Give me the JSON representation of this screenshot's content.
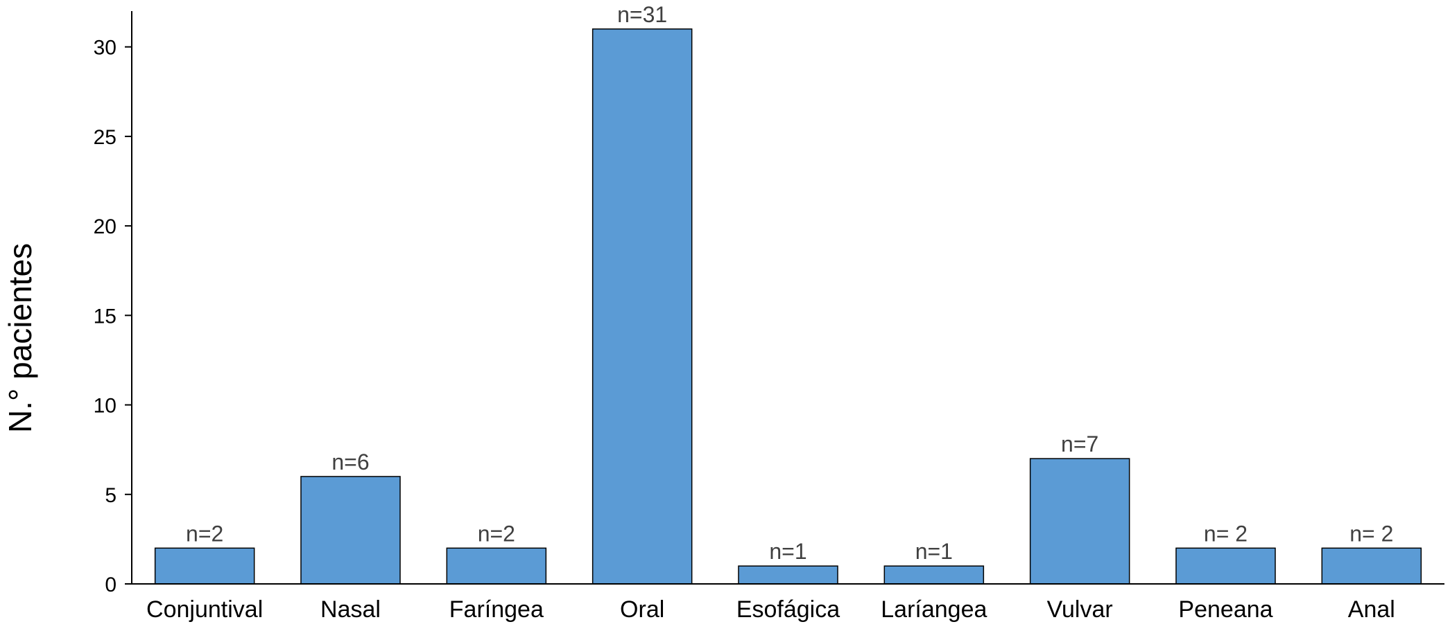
{
  "chart_data": {
    "type": "bar",
    "categories": [
      "Conjuntival",
      "Nasal",
      "Faríngea",
      "Oral",
      "Esofágica",
      "Laríangea",
      "Vulvar",
      "Peneana",
      "Anal"
    ],
    "values": [
      2,
      6,
      2,
      31,
      1,
      1,
      7,
      2,
      2
    ],
    "data_labels": [
      "n=2",
      "n=6",
      "n=2",
      "n=31",
      "n=1",
      "n=1",
      "n=7",
      "n= 2",
      "n= 2"
    ],
    "ylabel": "N.° pacientes",
    "xlabel": "",
    "ylim": [
      0,
      32
    ],
    "yticks": [
      0,
      5,
      10,
      15,
      20,
      25,
      30
    ],
    "bar_color": "#5b9bd5",
    "bar_edge_color": "#000000",
    "grid": false
  }
}
